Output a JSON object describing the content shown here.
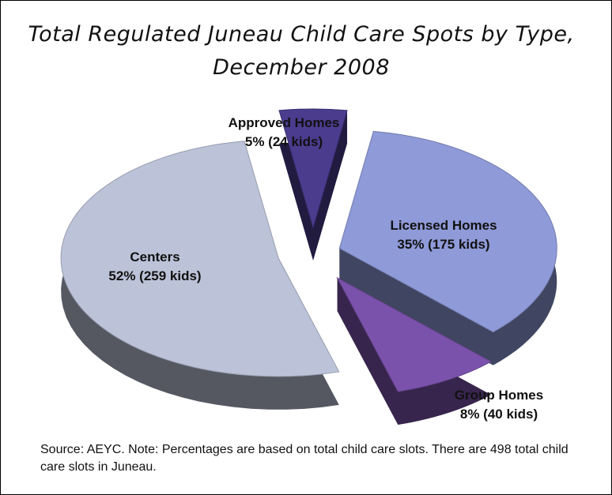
{
  "chart_data": {
    "type": "pie",
    "title": "Total Regulated Juneau Child Care Spots by Type, December 2008",
    "categories": [
      "Approved Homes",
      "Licensed Homes",
      "Group Homes",
      "Centers"
    ],
    "values": [
      5,
      35,
      8,
      52
    ],
    "value_labels": [
      "5% (24 kids)",
      "35% (175 kids)",
      "8% (40 kids)",
      "52% (259 kids)"
    ],
    "colors": [
      "#4b3c8e",
      "#8f9ad8",
      "#7b52ab",
      "#bcc3d8"
    ],
    "note": "Source:  AEYC.  Note:  Percentages are based on total child care slots. There are 498 total child care slots in Juneau."
  }
}
